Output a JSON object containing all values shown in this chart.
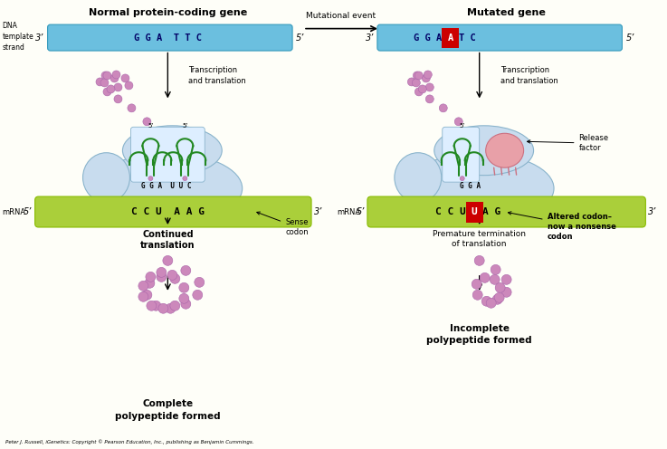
{
  "bg_color": "#FFFFFF",
  "title_left": "Normal protein-coding gene",
  "title_right": "Mutated gene",
  "title_center": "Mutational event",
  "dna_left_text": "G G A  T T C",
  "dna_left_3prime": "3’",
  "dna_left_5prime": "5’",
  "dna_right_3prime": "3’",
  "dna_right_5prime": "5’",
  "dna_color": "#6bbfdf",
  "dna_text_color": "#000066",
  "dna_mutant_highlight": "#cc0000",
  "mrna_color": "#aacf3a",
  "mrna_text_color": "#000055",
  "mrna_left_text": "C C U  A A G",
  "mrna_right_highlight": "#cc0000",
  "label_dna": "DNA\ntemplate\nstrand",
  "label_mrna": "mRNA",
  "arrow_trans_text": "Transcription\nand translation",
  "label_sense": "Sense\ncodon",
  "label_release": "Release\nfactor",
  "label_altered": "Altered codon–\nnow a nonsense\ncodon",
  "label_premature": "Premature termination\nof translation",
  "label_continued": "Continued\ntranslation",
  "label_complete": "Complete\npolypeptide formed",
  "label_incomplete": "Incomplete\npolypeptide formed",
  "label_mutational": "Mutational event",
  "ribosome_color": "#c8dcee",
  "ribosome_outline": "#8ab4cc",
  "ribosome_inner_color": "#ddeeff",
  "trna_color": "#228822",
  "polypeptide_color": "#cc88bb",
  "polypeptide_outline": "#aa66aa",
  "release_factor_color": "#e8a0a8",
  "release_factor_outline": "#cc7080",
  "copyright": "Peter J. Russell, iGenetics: Copyright © Pearson Education, Inc., publishing as Benjamin Cummings.",
  "fig_width": 7.37,
  "fig_height": 4.96
}
